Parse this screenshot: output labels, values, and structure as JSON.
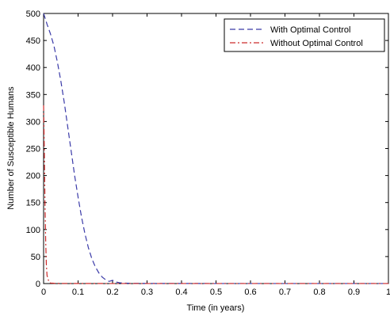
{
  "chart_data": {
    "type": "line",
    "xlabel": "Time (in years)",
    "ylabel": "Number of Susceptible Humans",
    "xlim": [
      0,
      1
    ],
    "ylim": [
      0,
      500
    ],
    "xticks": [
      "0",
      "0.1",
      "0.2",
      "0.3",
      "0.4",
      "0.5",
      "0.6",
      "0.7",
      "0.8",
      "0.9",
      "1"
    ],
    "yticks": [
      "0",
      "50",
      "100",
      "150",
      "200",
      "250",
      "300",
      "350",
      "400",
      "450",
      "500"
    ],
    "grid": false,
    "legend_position": "top-right",
    "series": [
      {
        "name": "With Optimal Control",
        "color": "#3a3aa8",
        "style": "dashed",
        "x": [
          0,
          0.01,
          0.02,
          0.03,
          0.04,
          0.05,
          0.06,
          0.07,
          0.08,
          0.09,
          0.1,
          0.11,
          0.12,
          0.13,
          0.14,
          0.15,
          0.16,
          0.17,
          0.18,
          0.19,
          0.2,
          0.21,
          0.22,
          0.23,
          0.25,
          0.3,
          0.4,
          0.5,
          0.6,
          0.7,
          0.8,
          0.9,
          1.0
        ],
        "y": [
          500,
          480,
          462,
          440,
          410,
          375,
          335,
          290,
          245,
          200,
          160,
          123,
          92,
          66,
          46,
          31,
          20,
          12,
          7,
          4,
          6,
          3,
          1.5,
          1,
          0.5,
          0.3,
          0.2,
          0.1,
          0.1,
          0.1,
          0.1,
          0.1,
          0.1
        ]
      },
      {
        "name": "Without Optimal Control",
        "color": "#cc2a2a",
        "style": "dashdot",
        "x": [
          0,
          0.002,
          0.004,
          0.006,
          0.008,
          0.01,
          0.015,
          0.02,
          0.03,
          0.05,
          0.1,
          0.2,
          0.4,
          0.6,
          0.8,
          1.0
        ],
        "y": [
          330,
          250,
          150,
          80,
          35,
          15,
          4,
          1,
          0.5,
          0.3,
          0.2,
          0.1,
          0.1,
          0.1,
          0.1,
          0.1
        ]
      }
    ]
  }
}
